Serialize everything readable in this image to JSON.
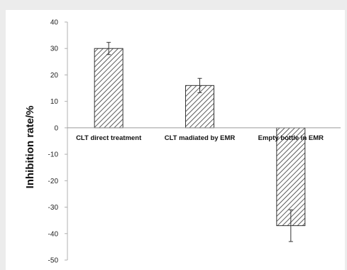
{
  "chart_data": {
    "type": "bar",
    "categories": [
      "CLT direct treatment",
      "CLT madiated by EMR",
      "Empty bottle in EMR"
    ],
    "values": [
      30,
      16,
      -37
    ],
    "error": [
      2.3,
      2.7,
      6
    ],
    "title": "",
    "xlabel": "",
    "ylabel": "Inhibition rate/%",
    "ylim": [
      -50,
      40
    ],
    "yticks": [
      40,
      30,
      20,
      10,
      0,
      -10,
      -20,
      -30,
      -40,
      -50
    ],
    "grid": false,
    "legend": "none",
    "bar_pattern": "diagonal-hatch"
  }
}
